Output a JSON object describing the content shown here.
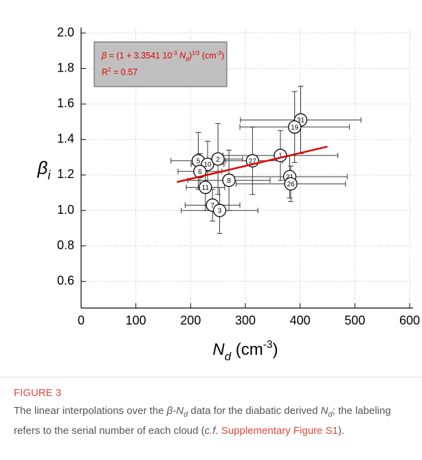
{
  "chart_data": {
    "type": "scatter",
    "y_label_parts": [
      {
        "text": "β",
        "style": "italic"
      },
      {
        "text": "i",
        "style": "italic-sub"
      }
    ],
    "x_label_parts": [
      {
        "text": "N",
        "style": "italic"
      },
      {
        "text": "d",
        "style": "italic-sub"
      },
      {
        "text": " (cm",
        "style": "normal"
      },
      {
        "text": "-3",
        "style": "sup"
      },
      {
        "text": ")",
        "style": "normal"
      }
    ],
    "annotation": {
      "line1": [
        {
          "text": "β",
          "style": "italic"
        },
        {
          "text": " = (1 + 3.3541 10",
          "style": "normal"
        },
        {
          "text": "-3",
          "style": "sup"
        },
        {
          "text": " N",
          "style": "italic"
        },
        {
          "text": "d",
          "style": "italic-sub"
        },
        {
          "text": ")",
          "style": "normal"
        },
        {
          "text": "1/3",
          "style": "sup"
        },
        {
          "text": " (cm",
          "style": "normal"
        },
        {
          "text": "-3",
          "style": "sup"
        },
        {
          "text": ")",
          "style": "normal"
        }
      ],
      "line2": [
        {
          "text": "R",
          "style": "normal"
        },
        {
          "text": "2",
          "style": "sup"
        },
        {
          "text": " = 0.57",
          "style": "normal"
        }
      ],
      "color": "#e00000",
      "box_color": "#c0c0c0"
    },
    "xlim": [
      0,
      600
    ],
    "ylim": [
      0.45,
      2.0
    ],
    "xticks": [
      0,
      100,
      200,
      300,
      400,
      500,
      600
    ],
    "yticks": [
      {
        "value": 0.6,
        "label": "0.6"
      },
      {
        "value": 0.8,
        "label": "0.8"
      },
      {
        "value": 1.0,
        "label": "1.0"
      },
      {
        "value": 1.2,
        "label": "1.2"
      },
      {
        "value": 1.4,
        "label": "1.4"
      },
      {
        "value": 1.6,
        "label": "1.6"
      },
      {
        "value": 1.8,
        "label": "1.8"
      },
      {
        "value": 2.0,
        "label": "2.0"
      }
    ],
    "grid": true,
    "labels": [
      "5",
      "10",
      "2",
      "6",
      "11",
      "8",
      "27",
      "1",
      "31",
      "19",
      "21",
      "26",
      "7",
      "3"
    ],
    "x": [
      214,
      231,
      250,
      217,
      227,
      270,
      313,
      364,
      401,
      390,
      381,
      383,
      240,
      253
    ],
    "y": [
      1.28,
      1.26,
      1.29,
      1.22,
      1.13,
      1.17,
      1.28,
      1.31,
      1.51,
      1.47,
      1.19,
      1.15,
      1.03,
      1.0
    ],
    "xerr": [
      50,
      30,
      45,
      40,
      35,
      75,
      55,
      105,
      110,
      100,
      105,
      100,
      50,
      70
    ],
    "yerr": [
      0.16,
      0.13,
      0.2,
      0.1,
      0.13,
      0.17,
      0.19,
      0.14,
      0.19,
      0.2,
      0.12,
      0.1,
      0.09,
      0.13
    ],
    "fit": {
      "x": [
        175,
        450
      ],
      "y": [
        1.16,
        1.36
      ],
      "color": "#e00000"
    }
  },
  "caption": {
    "title": "FIGURE 3",
    "parts": [
      {
        "text": "The linear interpolations over the ",
        "style": "normal"
      },
      {
        "text": "β",
        "style": "italic"
      },
      {
        "text": "-",
        "style": "normal"
      },
      {
        "text": "N",
        "style": "italic"
      },
      {
        "text": "d",
        "style": "italic-sub"
      },
      {
        "text": " data for the diabatic derived ",
        "style": "normal"
      },
      {
        "text": "N",
        "style": "italic"
      },
      {
        "text": "d",
        "style": "italic-sub"
      },
      {
        "text": "; the labeling refers to the serial number of each cloud (",
        "style": "normal"
      },
      {
        "text": "c.f.",
        "style": "italic"
      },
      {
        "text": " ",
        "style": "normal"
      },
      {
        "text": "Supplementary Figure S1",
        "style": "link"
      },
      {
        "text": ").",
        "style": "normal"
      }
    ]
  }
}
